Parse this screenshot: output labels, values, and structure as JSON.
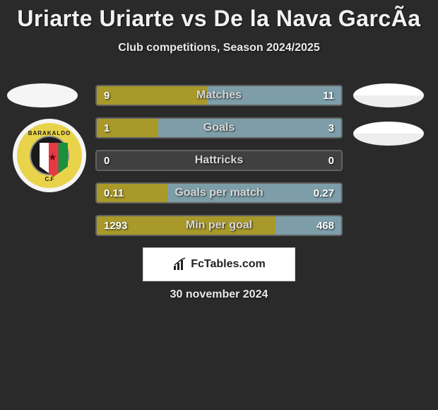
{
  "title": "Uriarte Uriarte vs De la Nava GarcÃ­a",
  "subtitle": "Club competitions, Season 2024/2025",
  "footer_brand": "FcTables.com",
  "footer_date": "30 november 2024",
  "colors": {
    "left_team": "#a8992a",
    "right_team": "#7d9ea9",
    "bar_bg": "#404040",
    "page_bg": "#2a2a2a",
    "text": "#f2f2f2"
  },
  "crest": {
    "top_text": "BARAKALDO",
    "bottom_text": "C.F"
  },
  "stats": [
    {
      "label": "Matches",
      "left_value": "9",
      "right_value": "11",
      "left_width_pct": 45,
      "right_width_pct": 55
    },
    {
      "label": "Goals",
      "left_value": "1",
      "right_value": "3",
      "left_width_pct": 25,
      "right_width_pct": 75
    },
    {
      "label": "Hattricks",
      "left_value": "0",
      "right_value": "0",
      "left_width_pct": 0,
      "right_width_pct": 0
    },
    {
      "label": "Goals per match",
      "left_value": "0.11",
      "right_value": "0.27",
      "left_width_pct": 29,
      "right_width_pct": 71
    },
    {
      "label": "Min per goal",
      "left_value": "1293",
      "right_value": "468",
      "left_width_pct": 73,
      "right_width_pct": 27
    }
  ]
}
